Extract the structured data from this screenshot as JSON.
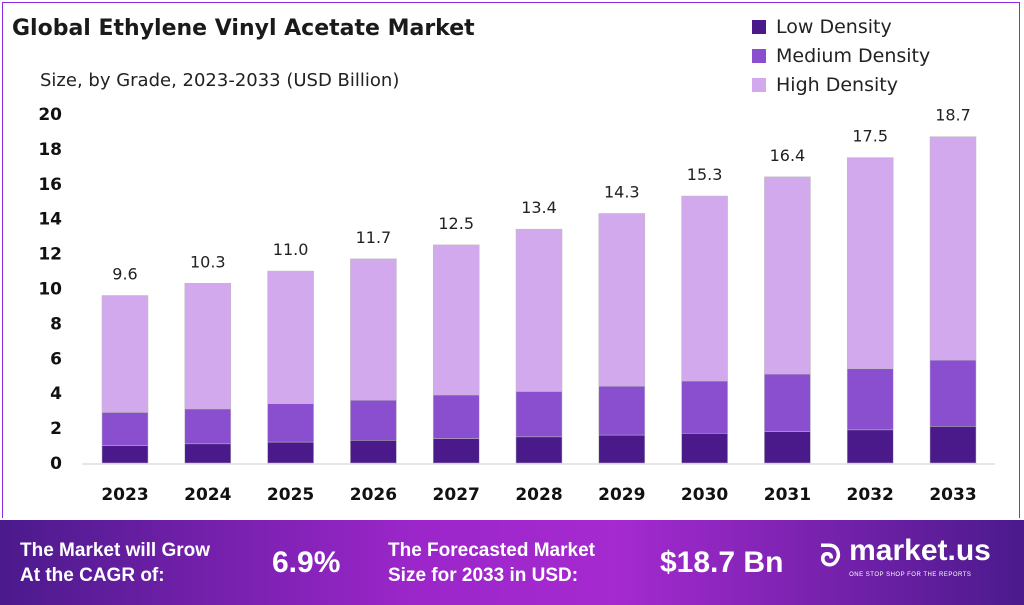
{
  "chart_data": {
    "type": "bar",
    "stacked": true,
    "title": "Global Ethylene Vinyl Acetate Market",
    "subtitle": "Size, by Grade, 2023-2033 (USD Billion)",
    "categories": [
      "2023",
      "2024",
      "2025",
      "2026",
      "2027",
      "2028",
      "2029",
      "2030",
      "2031",
      "2032",
      "2033"
    ],
    "series": [
      {
        "name": "Low Density",
        "color": "#4a1a8a",
        "values": [
          1.0,
          1.1,
          1.2,
          1.3,
          1.4,
          1.5,
          1.6,
          1.7,
          1.8,
          1.9,
          2.1
        ]
      },
      {
        "name": "Medium Density",
        "color": "#8a4fcf",
        "values": [
          1.9,
          2.0,
          2.2,
          2.3,
          2.5,
          2.6,
          2.8,
          3.0,
          3.3,
          3.5,
          3.8
        ]
      },
      {
        "name": "High Density",
        "color": "#d3a9ee",
        "values": [
          6.7,
          7.2,
          7.6,
          8.1,
          8.6,
          9.3,
          9.9,
          10.6,
          11.3,
          12.1,
          12.8
        ]
      }
    ],
    "totals": [
      "9.6",
      "10.3",
      "11.0",
      "11.7",
      "12.5",
      "13.4",
      "14.3",
      "15.3",
      "16.4",
      "17.5",
      "18.7"
    ],
    "ylim": [
      0,
      20
    ],
    "yticks": [
      "0",
      "2",
      "4",
      "6",
      "8",
      "10",
      "12",
      "14",
      "16",
      "18",
      "20"
    ],
    "grid": false,
    "legend_position": "top-right"
  },
  "footer": {
    "cagr_label_1": "The Market will Grow",
    "cagr_label_2": "At the CAGR of:",
    "cagr_value": "6.9%",
    "forecast_label_1": "The Forecasted Market",
    "forecast_label_2": "Size for 2033 in USD:",
    "forecast_value": "$18.7 Bn",
    "brand": "market.us",
    "brand_tagline": "ONE STOP SHOP FOR THE REPORTS"
  }
}
